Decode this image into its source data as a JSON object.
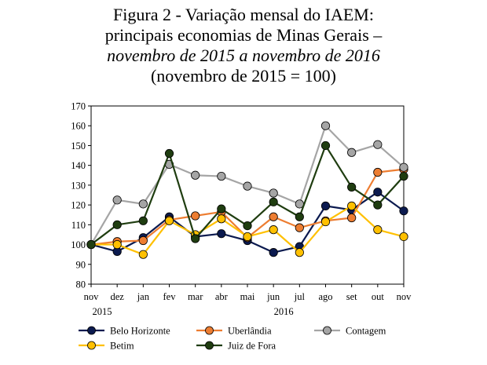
{
  "title": {
    "line1": "Figura 2 - Variação mensal do IAEM:",
    "line2": "principais economias de Minas Gerais –",
    "line3": "novembro de 2015 a novembro de 2016",
    "line4": "(novembro de 2015 = 100)"
  },
  "chart_data": {
    "type": "line",
    "categories": [
      "nov",
      "dez",
      "jan",
      "fev",
      "mar",
      "abr",
      "mai",
      "jun",
      "jul",
      "ago",
      "set",
      "out",
      "nov"
    ],
    "year_labels": [
      "2015",
      "2016"
    ],
    "ylim": [
      80,
      170
    ],
    "yticks": [
      80,
      90,
      100,
      110,
      120,
      130,
      140,
      150,
      160,
      170
    ],
    "grid": false,
    "legend_position": "bottom",
    "series": [
      {
        "name": "Belo Horizonte",
        "color": "#0b1a4f",
        "values": [
          100,
          96.5,
          103.5,
          114,
          104,
          105.5,
          102,
          96,
          99,
          119.5,
          117.5,
          126.5,
          117
        ]
      },
      {
        "name": "Uberlândia",
        "color": "#ed7d31",
        "values": [
          100,
          101.5,
          102,
          112.5,
          114.5,
          116.5,
          103.5,
          114,
          108.5,
          112,
          113.5,
          136.5,
          138
        ]
      },
      {
        "name": "Contagem",
        "color": "#a5a5a5",
        "values": [
          100,
          122.5,
          120.5,
          140.5,
          135,
          134.5,
          129.5,
          126,
          120.5,
          160,
          146.5,
          150.5,
          139
        ]
      },
      {
        "name": "Betim",
        "color": "#ffc000",
        "values": [
          100,
          100,
          95,
          112,
          105,
          113,
          104,
          107.5,
          96,
          111.5,
          119.5,
          107.5,
          104
        ]
      },
      {
        "name": "Juiz de Fora",
        "color": "#1f3d10",
        "values": [
          100,
          110,
          112,
          146,
          103,
          118,
          109.5,
          121.5,
          114,
          150,
          129,
          120,
          134.5
        ]
      }
    ]
  }
}
